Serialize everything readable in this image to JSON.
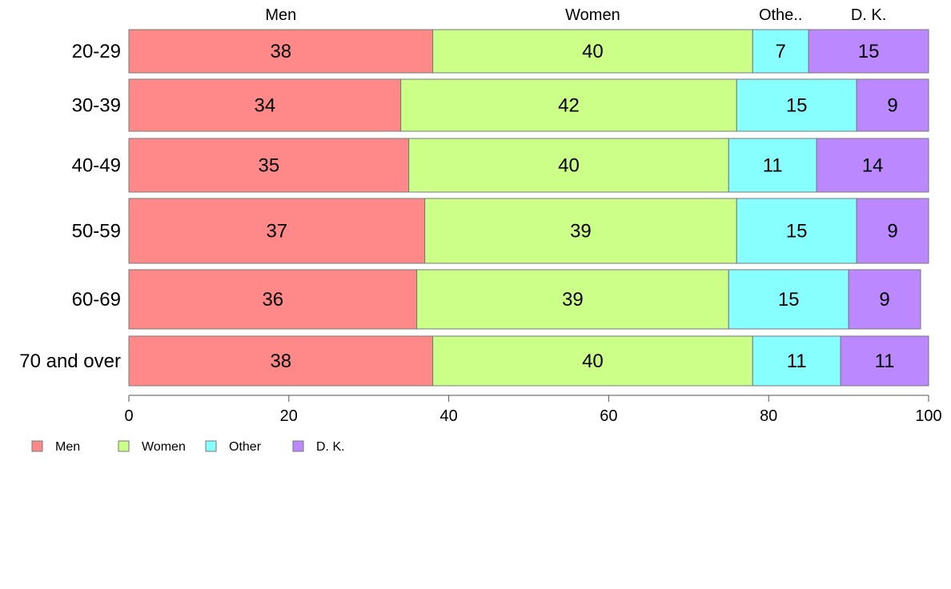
{
  "chart_data": {
    "type": "bar",
    "orientation": "horizontal",
    "stacked": true,
    "categories": [
      "20-29",
      "30-39",
      "40-49",
      "50-59",
      "60-69",
      "70 and over"
    ],
    "series": [
      {
        "name": "Men",
        "values": [
          38,
          34,
          35,
          37,
          36,
          38
        ]
      },
      {
        "name": "Women",
        "values": [
          40,
          42,
          40,
          39,
          39,
          40
        ]
      },
      {
        "name": "Other",
        "values": [
          7,
          15,
          11,
          15,
          15,
          11
        ]
      },
      {
        "name": "D. K.",
        "values": [
          15,
          9,
          14,
          9,
          9,
          11
        ]
      }
    ],
    "top_labels": [
      "Men",
      "Women",
      "Othe..",
      "D. K."
    ],
    "xlim": [
      0,
      100
    ],
    "xticks": [
      0,
      20,
      40,
      60,
      80,
      100
    ],
    "grid": false,
    "legend_position": "bottom-left",
    "colors": [
      "#ff8888",
      "#ccff88",
      "#88ffff",
      "#bb88ff"
    ]
  }
}
